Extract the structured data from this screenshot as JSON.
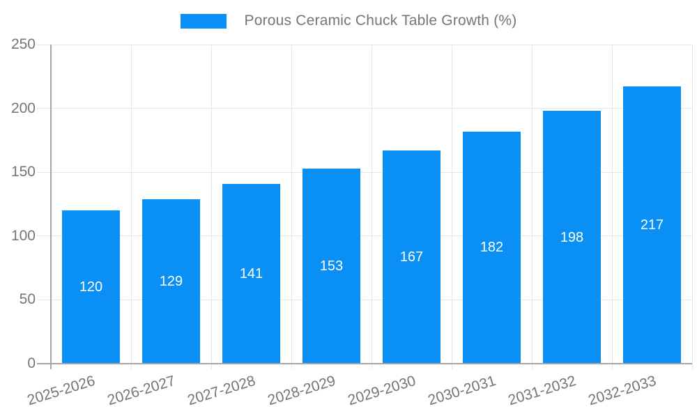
{
  "chart_data": {
    "type": "bar",
    "title": "Porous Ceramic Chuck Table Growth (%)",
    "categories": [
      "2025-2026",
      "2026-2027",
      "2027-2028",
      "2028-2029",
      "2029-2030",
      "2030-2031",
      "2031-2032",
      "2032-2033"
    ],
    "values": [
      120,
      129,
      141,
      153,
      167,
      182,
      198,
      217
    ],
    "xlabel": "",
    "ylabel": "",
    "ylim": [
      0,
      250
    ],
    "yticks": [
      0,
      50,
      100,
      150,
      200,
      250
    ],
    "grid": true,
    "legend_position": "top-center",
    "bar_color": "#0a8ff5",
    "bar_label_color": "#ffffff",
    "axis_text_color": "#757575",
    "gridline_color": "#e6e6e6",
    "axis_line_color": "#a6a6a6"
  }
}
